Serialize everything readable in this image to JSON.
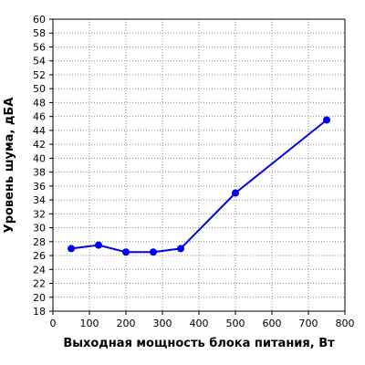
{
  "chart_data": {
    "type": "line",
    "xlabel": "Выходная мощность блока питания, Вт",
    "ylabel": "Уровень шума, дБА",
    "xlim": [
      0,
      800
    ],
    "ylim": [
      18,
      60
    ],
    "x_ticks": [
      0,
      100,
      200,
      300,
      400,
      500,
      600,
      700,
      800
    ],
    "y_ticks": [
      18,
      20,
      22,
      24,
      26,
      28,
      30,
      32,
      34,
      36,
      38,
      40,
      42,
      44,
      46,
      48,
      50,
      52,
      54,
      56,
      58,
      60
    ],
    "grid": true,
    "series": [
      {
        "x": [
          50,
          125,
          200,
          275,
          350,
          500,
          750
        ],
        "y": [
          27,
          27.5,
          26.5,
          26.5,
          27,
          35,
          45.5
        ],
        "color": "#0000ee"
      }
    ]
  }
}
